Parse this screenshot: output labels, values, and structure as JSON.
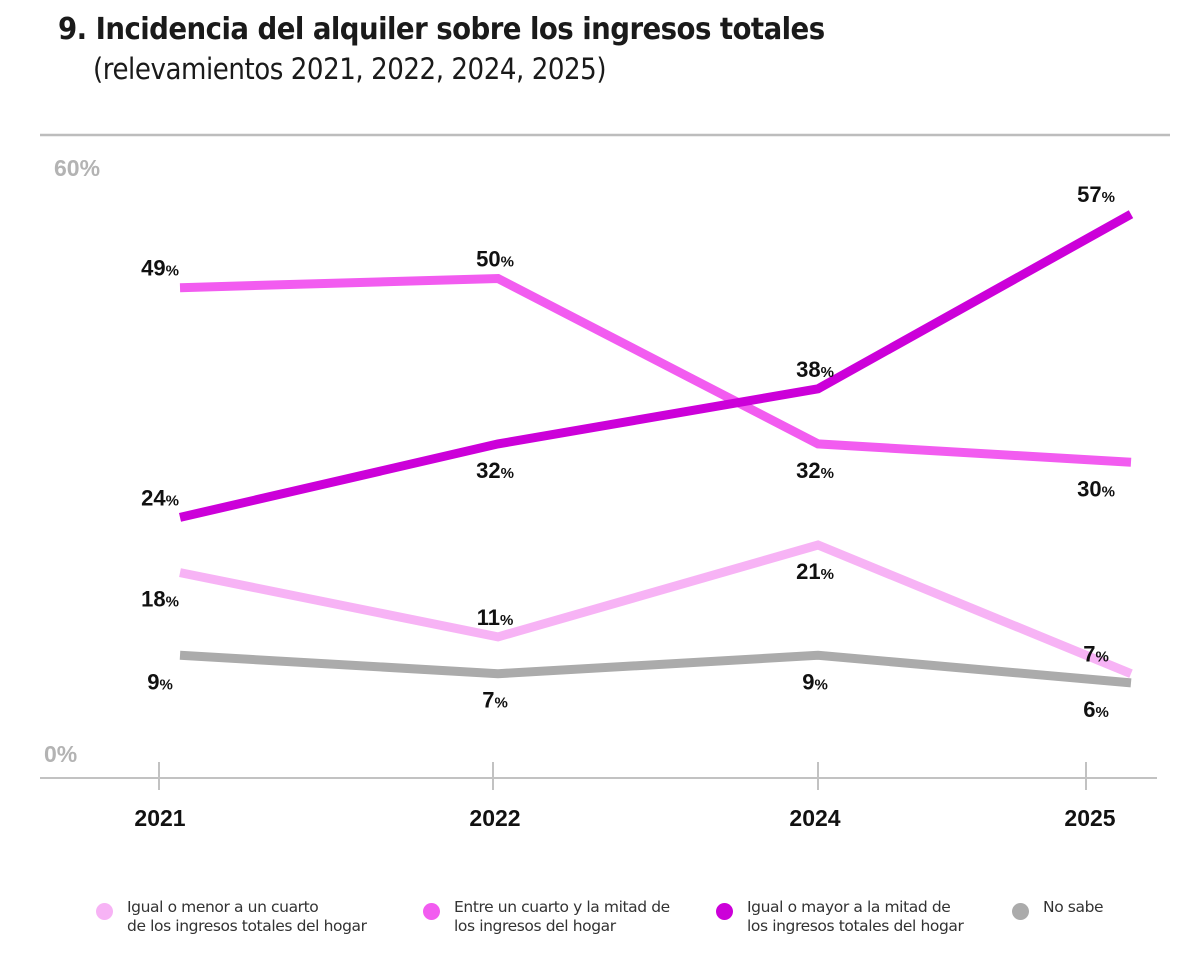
{
  "chart_data": {
    "type": "line",
    "title": "9. Incidencia del alquiler sobre los ingresos totales",
    "subtitle": "(relevamientos 2021, 2022, 2024, 2025)",
    "xlabel": "",
    "ylabel": "",
    "x": [
      "2021",
      "2022",
      "2024",
      "2025"
    ],
    "ylim": [
      0,
      60
    ],
    "ytick_labels": [
      "0%",
      "60%"
    ],
    "grid": false,
    "legend_position": "bottom",
    "value_suffix": "%",
    "series": [
      {
        "name": "Igual o menor a un cuarto\nde los ingresos totales del hogar",
        "color": "#f7b3f5",
        "values": [
          18,
          11,
          21,
          7
        ],
        "label_side": [
          "below",
          "above",
          "below",
          "above"
        ]
      },
      {
        "name": "Entre un cuarto y la mitad de\nlos ingresos del hogar",
        "color": "#f25cf0",
        "values": [
          49,
          50,
          32,
          30
        ],
        "label_side": [
          "above",
          "above",
          "below",
          "below"
        ]
      },
      {
        "name": "Igual o mayor a la mitad de\nlos ingresos totales del hogar",
        "color": "#cc00d9",
        "values": [
          24,
          32,
          38,
          57
        ],
        "label_side": [
          "above",
          "below",
          "above",
          "above"
        ]
      },
      {
        "name": "No sabe",
        "color": "#ababab",
        "values": [
          9,
          7,
          9,
          6
        ],
        "label_side": [
          "below",
          "below",
          "below",
          "below"
        ]
      }
    ]
  }
}
